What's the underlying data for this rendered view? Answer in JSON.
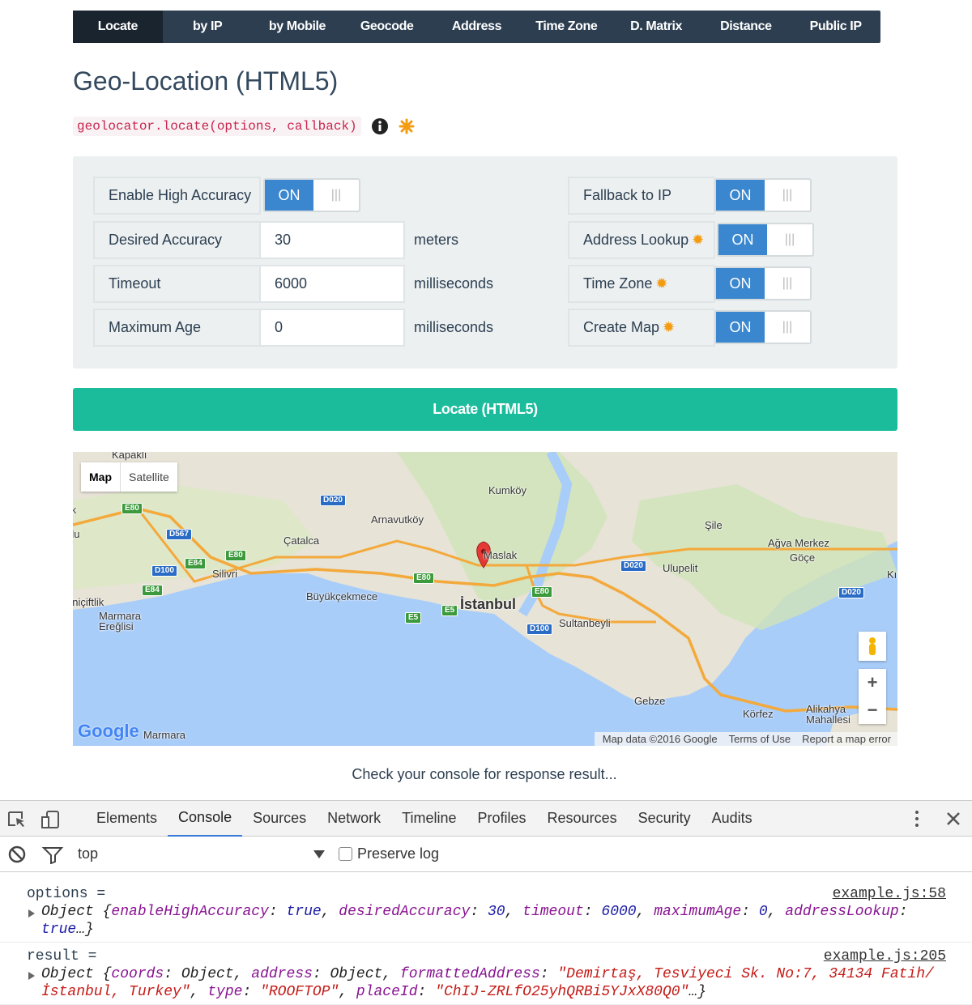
{
  "nav": {
    "tabs": [
      "Locate",
      "by IP",
      "by Mobile",
      "Geocode",
      "Address",
      "Time Zone",
      "D. Matrix",
      "Distance",
      "Public IP"
    ],
    "active": 0
  },
  "header": {
    "title": "Geo-Location (HTML5)",
    "code": "geolocator.locate(options, callback)"
  },
  "form": {
    "left": [
      {
        "label": "Enable High Accuracy",
        "toggle": "ON"
      },
      {
        "label": "Desired Accuracy",
        "value": "30",
        "unit": "meters"
      },
      {
        "label": "Timeout",
        "value": "6000",
        "unit": "milliseconds"
      },
      {
        "label": "Maximum Age",
        "value": "0",
        "unit": "milliseconds"
      }
    ],
    "right": [
      {
        "label": "Fallback to IP",
        "toggle": "ON",
        "star": false
      },
      {
        "label": "Address Lookup",
        "toggle": "ON",
        "star": true
      },
      {
        "label": "Time Zone",
        "toggle": "ON",
        "star": true
      },
      {
        "label": "Create Map",
        "toggle": "ON",
        "star": true
      }
    ]
  },
  "button": "Locate (HTML5)",
  "map": {
    "types": [
      "Map",
      "Satellite"
    ],
    "places": [
      "Kapaklı",
      "ık",
      "rlu",
      "Kumköy",
      "Arnavutköy",
      "Çatalca",
      "Şile",
      "Ağva Merkez",
      "Göçe",
      "Maslak",
      "Silivri",
      "Ulupelit",
      "Büyükçekmece",
      "İstanbul",
      "Sultanbeyli",
      "eniçiftlik",
      "Marmara Ereğlisi",
      "Gebze",
      "Körfez",
      "Alikahya Mahallesi",
      "Marmara",
      "Kı"
    ],
    "roads": [
      "E80",
      "D020",
      "D567",
      "E80",
      "E84",
      "D100",
      "E84",
      "E80",
      "E5",
      "E5",
      "E80",
      "D100",
      "D020",
      "D020"
    ],
    "zoom": [
      "+",
      "−"
    ],
    "logo": "Google",
    "footer": [
      "Map data ©2016 Google",
      "Terms of Use",
      "Report a map error"
    ]
  },
  "status": "Check your console for response result...",
  "devtools": {
    "tabs": [
      "Elements",
      "Console",
      "Sources",
      "Network",
      "Timeline",
      "Profiles",
      "Resources",
      "Security",
      "Audits"
    ],
    "active": 1,
    "context": "top",
    "preserve": "Preserve log",
    "entries": [
      {
        "label": "options =",
        "source": "example.js:58",
        "tokens": [
          {
            "text": "Object {",
            "color": "#222222"
          },
          {
            "text": "enableHighAccuracy",
            "color": "#881391"
          },
          {
            "text": ": ",
            "color": "#222222"
          },
          {
            "text": "true",
            "color": "#1a1aa6"
          },
          {
            "text": ", ",
            "color": "#222222"
          },
          {
            "text": "desiredAccuracy",
            "color": "#881391"
          },
          {
            "text": ": ",
            "color": "#222222"
          },
          {
            "text": "30",
            "color": "#1a1aa6"
          },
          {
            "text": ", ",
            "color": "#222222"
          },
          {
            "text": "timeout",
            "color": "#881391"
          },
          {
            "text": ": ",
            "color": "#222222"
          },
          {
            "text": "6000",
            "color": "#1a1aa6"
          },
          {
            "text": ", ",
            "color": "#222222"
          },
          {
            "text": "maximumAge",
            "color": "#881391"
          },
          {
            "text": ": ",
            "color": "#222222"
          },
          {
            "text": "0",
            "color": "#1a1aa6"
          },
          {
            "text": ", ",
            "color": "#222222"
          },
          {
            "text": "addressLookup",
            "color": "#881391"
          },
          {
            "text": ": ",
            "color": "#222222"
          },
          {
            "text": "true",
            "color": "#1a1aa6"
          },
          {
            "text": "…}",
            "color": "#222222"
          }
        ]
      },
      {
        "label": "result =",
        "source": "example.js:205",
        "tokens": [
          {
            "text": "Object {",
            "color": "#222222"
          },
          {
            "text": "coords",
            "color": "#881391"
          },
          {
            "text": ": Object, ",
            "color": "#222222"
          },
          {
            "text": "address",
            "color": "#881391"
          },
          {
            "text": ": Object, ",
            "color": "#222222"
          },
          {
            "text": "formattedAddress",
            "color": "#881391"
          },
          {
            "text": ": ",
            "color": "#222222"
          },
          {
            "text": "\"Demirtaş, Tesviyeci Sk. No:7, 34134 Fatih/İstanbul, Turkey\"",
            "color": "#c41a16"
          },
          {
            "text": ", ",
            "color": "#222222"
          },
          {
            "text": "type",
            "color": "#881391"
          },
          {
            "text": ": ",
            "color": "#222222"
          },
          {
            "text": "\"ROOFTOP\"",
            "color": "#c41a16"
          },
          {
            "text": ", ",
            "color": "#222222"
          },
          {
            "text": "placeId",
            "color": "#881391"
          },
          {
            "text": ": ",
            "color": "#222222"
          },
          {
            "text": "\"ChIJ-ZRLfO25yhQRBi5YJxX80Q0\"",
            "color": "#c41a16"
          },
          {
            "text": "…}",
            "color": "#222222"
          }
        ]
      }
    ]
  }
}
